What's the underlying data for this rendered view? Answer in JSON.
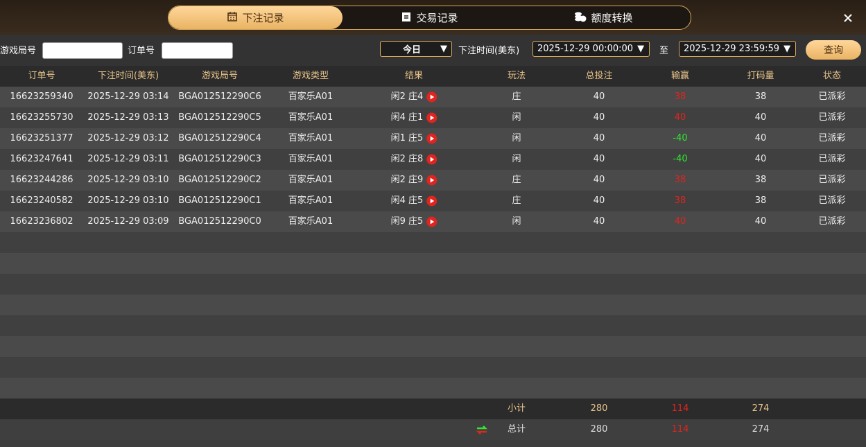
{
  "tabs": [
    "下注记录",
    "交易记录",
    "额度转换"
  ],
  "filters": {
    "game_no_label": "游戏局号",
    "order_no_label": "订单号",
    "period": "今日",
    "time_label": "下注时间(美东)",
    "start": "2025-12-29 00:00:00",
    "to": "至",
    "end": "2025-12-29 23:59:59",
    "search": "查询"
  },
  "table": {
    "headers": [
      "订单号",
      "下注时间(美东)",
      "游戏局号",
      "游戏类型",
      "结果",
      "玩法",
      "总投注",
      "输赢",
      "打码量",
      "状态"
    ],
    "rows": [
      [
        "16623259340",
        "2025-12-29 03:14",
        "BGA012512290C6",
        "百家乐A01",
        "闲2 庄4",
        "庄",
        40,
        38,
        38,
        "已派彩"
      ],
      [
        "16623255730",
        "2025-12-29 03:13",
        "BGA012512290C5",
        "百家乐A01",
        "闲4 庄1",
        "闲",
        40,
        40,
        40,
        "已派彩"
      ],
      [
        "16623251377",
        "2025-12-29 03:12",
        "BGA012512290C4",
        "百家乐A01",
        "闲1 庄5",
        "闲",
        40,
        -40,
        40,
        "已派彩"
      ],
      [
        "16623247641",
        "2025-12-29 03:11",
        "BGA012512290C3",
        "百家乐A01",
        "闲2 庄8",
        "闲",
        40,
        -40,
        40,
        "已派彩"
      ],
      [
        "16623244286",
        "2025-12-29 03:10",
        "BGA012512290C2",
        "百家乐A01",
        "闲2 庄9",
        "庄",
        40,
        38,
        38,
        "已派彩"
      ],
      [
        "16623240582",
        "2025-12-29 03:10",
        "BGA012512290C1",
        "百家乐A01",
        "闲4 庄5",
        "庄",
        40,
        38,
        38,
        "已派彩"
      ],
      [
        "16623236802",
        "2025-12-29 03:09",
        "BGA012512290C0",
        "百家乐A01",
        "闲9 庄5",
        "闲",
        40,
        40,
        40,
        "已派彩"
      ]
    ]
  },
  "subtotal": {
    "label": "小计",
    "bet": 280,
    "win": 114,
    "code": 274
  },
  "total": {
    "label": "总计",
    "bet": 280,
    "win": 114,
    "code": 274
  }
}
